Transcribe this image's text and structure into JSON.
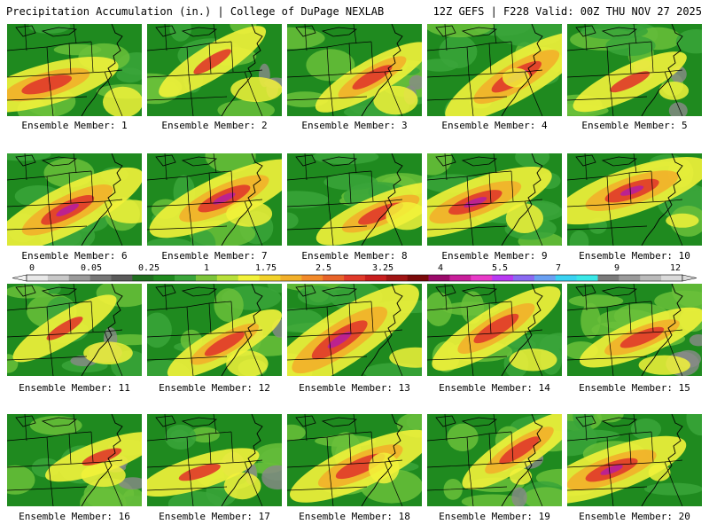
{
  "header": {
    "left": "Precipitation Accumulation (in.) | College of DuPage NEXLAB",
    "right": "12Z GEFS | F228 Valid: 00Z THU NOV 27 2025"
  },
  "members": [
    {
      "label": "Ensemble Member: 1",
      "intensity": 0.55
    },
    {
      "label": "Ensemble Member: 2",
      "intensity": 0.3
    },
    {
      "label": "Ensemble Member: 3",
      "intensity": 0.35
    },
    {
      "label": "Ensemble Member: 4",
      "intensity": 0.7
    },
    {
      "label": "Ensemble Member: 5",
      "intensity": 0.3
    },
    {
      "label": "Ensemble Member: 6",
      "intensity": 0.75
    },
    {
      "label": "Ensemble Member: 7",
      "intensity": 0.7
    },
    {
      "label": "Ensemble Member: 8",
      "intensity": 0.45
    },
    {
      "label": "Ensemble Member: 9",
      "intensity": 0.7
    },
    {
      "label": "Ensemble Member: 10",
      "intensity": 0.7
    },
    {
      "label": "Ensemble Member: 11",
      "intensity": 0.25
    },
    {
      "label": "Ensemble Member: 12",
      "intensity": 0.35
    },
    {
      "label": "Ensemble Member: 13",
      "intensity": 0.95
    },
    {
      "label": "Ensemble Member: 14",
      "intensity": 0.55
    },
    {
      "label": "Ensemble Member: 15",
      "intensity": 0.4
    },
    {
      "label": "Ensemble Member: 16",
      "intensity": 0.25
    },
    {
      "label": "Ensemble Member: 17",
      "intensity": 0.3
    },
    {
      "label": "Ensemble Member: 18",
      "intensity": 0.6
    },
    {
      "label": "Ensemble Member: 19",
      "intensity": 0.4
    },
    {
      "label": "Ensemble Member: 20",
      "intensity": 0.65
    }
  ],
  "colorbar": {
    "labels": [
      "0",
      "0.05",
      "0.25",
      "1",
      "1.75",
      "2.5",
      "3.25",
      "4",
      "5.5",
      "7",
      "9",
      "12"
    ],
    "colors": [
      "#e8e8e8",
      "#c8c8c8",
      "#9a9a9a",
      "#767676",
      "#5a5a5a",
      "#1f6e1f",
      "#1f8a1f",
      "#3aa53a",
      "#7cc43a",
      "#b8e03a",
      "#f2f23a",
      "#f2d22a",
      "#f2b02a",
      "#f28a2a",
      "#e8642a",
      "#e03a2a",
      "#c81e1e",
      "#a01414",
      "#7a0a0a",
      "#9a0a6a",
      "#c81e9a",
      "#e83ac8",
      "#b83af2",
      "#8a6af2",
      "#6aa0f2",
      "#3ad2f2",
      "#3ae8e8",
      "#7a7a7a",
      "#9a9a9a",
      "#bababa",
      "#dadada"
    ]
  }
}
